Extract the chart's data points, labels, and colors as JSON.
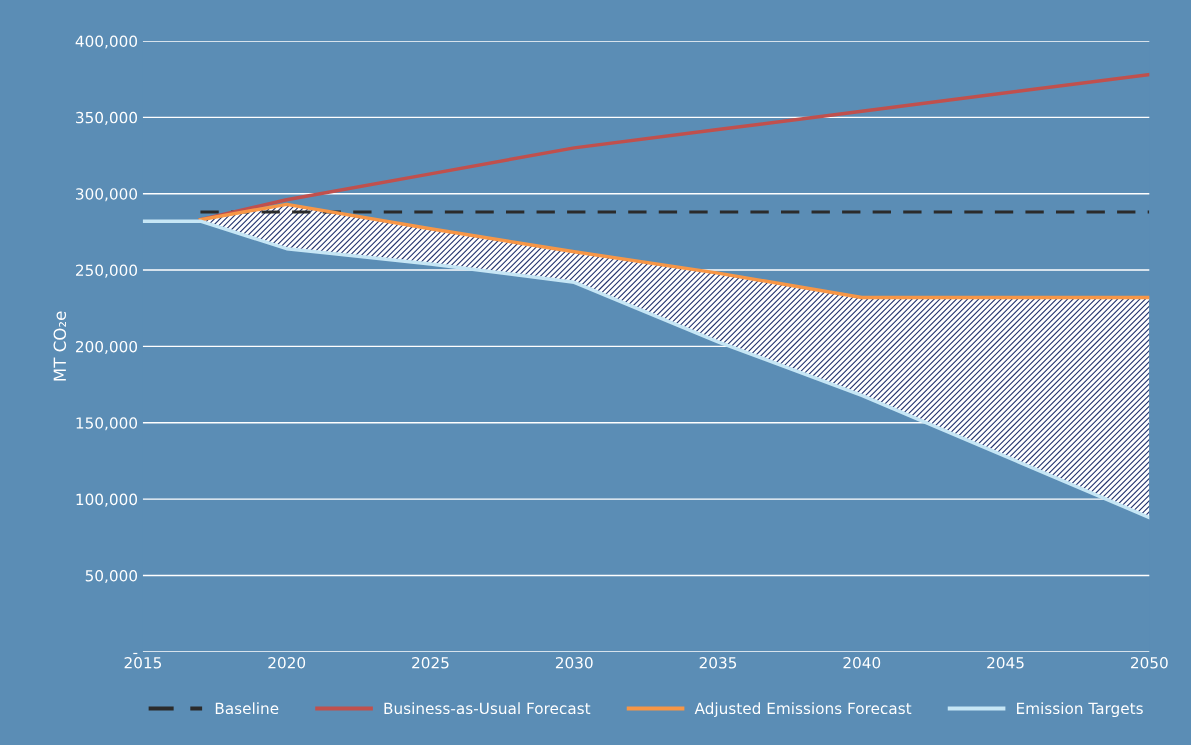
{
  "chart_data": {
    "type": "line",
    "ylabel": "MT CO₂e",
    "x": [
      2015,
      2017,
      2020,
      2025,
      2030,
      2035,
      2040,
      2050
    ],
    "series": [
      {
        "name": "Baseline",
        "color": "#2b2b2b",
        "line_style": "dashed",
        "values": [
          null,
          288000,
          288000,
          288000,
          288000,
          288000,
          288000,
          288000
        ]
      },
      {
        "name": "Business-as-Usual Forecast",
        "color": "#c0504d",
        "values": [
          null,
          283000,
          296000,
          313000,
          330000,
          342000,
          354000,
          378000
        ]
      },
      {
        "name": "Adjusted Emissions Forecast",
        "color": "#f79646",
        "values": [
          null,
          283000,
          293000,
          277000,
          262000,
          248000,
          232000,
          232000
        ],
        "lower": [
          null,
          282000,
          264000,
          254000,
          242000,
          203000,
          168000,
          88000
        ],
        "upper": [
          null,
          283000,
          293000,
          277000,
          262000,
          248000,
          232000,
          232000
        ]
      },
      {
        "name": "Emission Targets",
        "color": "#c6e6f5",
        "values": [
          282000,
          282000,
          264000,
          254000,
          242000,
          203000,
          168000,
          88000
        ]
      }
    ],
    "xlim": [
      2015,
      2050
    ],
    "xticks": [
      2015,
      2020,
      2025,
      2030,
      2035,
      2040,
      2045,
      2050
    ],
    "ylim": [
      0,
      400000
    ],
    "yticks": [
      {
        "value": 0,
        "label": "-"
      },
      {
        "value": 50000,
        "label": "50,000"
      },
      {
        "value": 100000,
        "label": "100,000"
      },
      {
        "value": 150000,
        "label": "150,000"
      },
      {
        "value": 200000,
        "label": "200,000"
      },
      {
        "value": 250000,
        "label": "250,000"
      },
      {
        "value": 300000,
        "label": "300,000"
      },
      {
        "value": 350000,
        "label": "350,000"
      },
      {
        "value": 400000,
        "label": "400,000"
      }
    ],
    "grid": "y",
    "legend": "bottom",
    "marker": "none"
  }
}
